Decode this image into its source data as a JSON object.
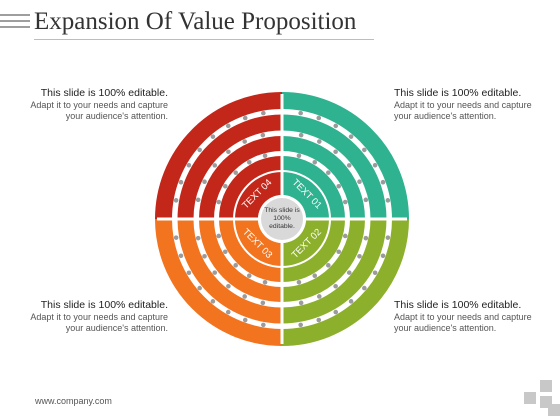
{
  "title": "Expansion Of Value Proposition",
  "callouts": {
    "top_left": {
      "head": "This slide is 100% editable.",
      "body": "Adapt it to your needs and capture your audience's attention."
    },
    "top_right": {
      "head": "This slide is 100% editable.",
      "body": "Adapt it to your needs and capture your audience's attention."
    },
    "bottom_left": {
      "head": "This slide is 100% editable.",
      "body": "Adapt it to your needs and capture your audience's attention."
    },
    "bottom_right": {
      "head": "This slide is 100% editable.",
      "body": "Adapt it to your needs and capture your audience's attention."
    }
  },
  "center_text": "This slide is 100% editable.",
  "quadrants": [
    {
      "label": "TEXT 01",
      "color": "#2fb28f",
      "position": "top-right"
    },
    {
      "label": "TEXT 02",
      "color": "#8cb02c",
      "position": "bottom-right"
    },
    {
      "label": "TEXT 03",
      "color": "#f2741f",
      "position": "bottom-left"
    },
    {
      "label": "TEXT 04",
      "color": "#c3271a",
      "position": "top-left"
    }
  ],
  "footer": "www.company.com"
}
